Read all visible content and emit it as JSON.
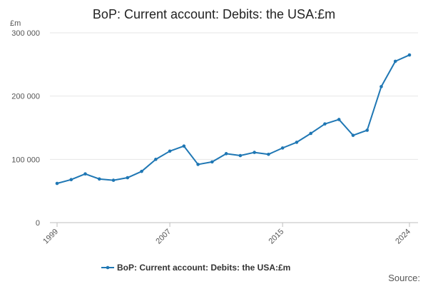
{
  "chart_data": {
    "type": "line",
    "title": "BoP: Current account: Debits: the USA:£m",
    "ylabel": "£m",
    "xlabel": "",
    "source_label": "Source:",
    "ylim": [
      0,
      300000
    ],
    "xlim": [
      1999,
      2024
    ],
    "yticks": [
      0,
      100000,
      200000,
      300000
    ],
    "ytick_labels": [
      "0",
      "100 000",
      "200 000",
      "300 000"
    ],
    "xticks": [
      1999,
      2007,
      2015,
      2024
    ],
    "xtick_labels": [
      "1999",
      "2007",
      "2015",
      "2024"
    ],
    "grid": true,
    "legend_position": "bottom",
    "x": [
      1999,
      2000,
      2001,
      2002,
      2003,
      2004,
      2005,
      2006,
      2007,
      2008,
      2009,
      2010,
      2011,
      2012,
      2013,
      2014,
      2015,
      2016,
      2017,
      2018,
      2019,
      2020,
      2021,
      2022,
      2023,
      2024
    ],
    "series": [
      {
        "name": "BoP: Current account: Debits: the USA:£m",
        "color": "#1f77b4",
        "values": [
          62000,
          68000,
          77000,
          69000,
          67000,
          71000,
          81000,
          100000,
          113000,
          121000,
          92000,
          96000,
          109000,
          106000,
          111000,
          108000,
          118000,
          127000,
          141000,
          156000,
          163000,
          138000,
          146000,
          215000,
          255000,
          265000
        ]
      }
    ]
  }
}
